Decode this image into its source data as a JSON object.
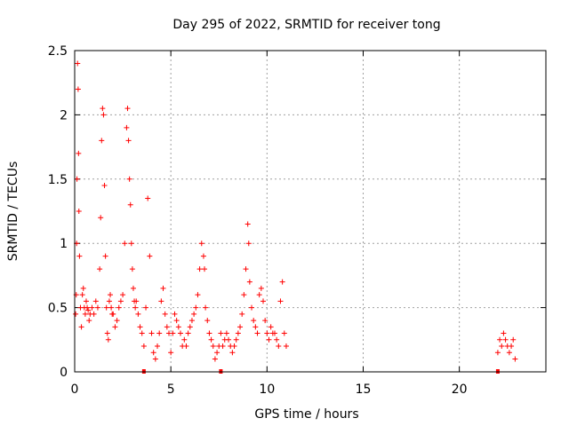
{
  "chart_data": {
    "type": "scatter",
    "title": "Day 295 of 2022, SRMTID for receiver tong",
    "xlabel": "GPS time / hours",
    "ylabel": "SRMTID / TECUs",
    "xlim": [
      0,
      24.5
    ],
    "ylim": [
      0,
      2.5
    ],
    "xticks": [
      "0",
      "5",
      "10",
      "15",
      "20"
    ],
    "yticks": [
      "0",
      "0.5",
      "1",
      "1.5",
      "2",
      "2.5"
    ],
    "grid": true,
    "marker": "+",
    "marker_color": "#ff0000",
    "series": [
      {
        "name": "SRMTID",
        "x": [
          0.05,
          0.08,
          0.1,
          0.12,
          0.15,
          0.18,
          0.2,
          0.22,
          0.25,
          0.3,
          0.35,
          0.4,
          0.45,
          0.5,
          0.55,
          0.6,
          0.65,
          0.7,
          0.75,
          0.8,
          0.9,
          1.0,
          1.1,
          1.2,
          1.3,
          1.35,
          1.4,
          1.45,
          1.5,
          1.55,
          1.6,
          1.65,
          1.7,
          1.75,
          1.8,
          1.85,
          1.9,
          1.95,
          2.0,
          2.1,
          2.2,
          2.3,
          2.4,
          2.5,
          2.6,
          2.7,
          2.75,
          2.8,
          2.85,
          2.9,
          2.95,
          3.0,
          3.05,
          3.1,
          3.15,
          3.2,
          3.3,
          3.4,
          3.5,
          3.6,
          3.7,
          3.8,
          3.9,
          4.0,
          4.1,
          4.2,
          4.3,
          4.4,
          4.5,
          4.6,
          4.7,
          4.8,
          4.9,
          5.0,
          5.1,
          5.2,
          5.3,
          5.4,
          5.5,
          5.6,
          5.7,
          5.8,
          5.9,
          6.0,
          6.1,
          6.2,
          6.3,
          6.4,
          6.5,
          6.6,
          6.7,
          6.75,
          6.8,
          6.9,
          7.0,
          7.1,
          7.2,
          7.3,
          7.4,
          7.5,
          7.6,
          7.7,
          7.8,
          7.9,
          8.0,
          8.1,
          8.2,
          8.3,
          8.4,
          8.5,
          8.6,
          8.7,
          8.8,
          8.9,
          9.0,
          9.05,
          9.1,
          9.2,
          9.3,
          9.4,
          9.5,
          9.6,
          9.7,
          9.8,
          9.9,
          10.0,
          10.1,
          10.2,
          10.3,
          10.4,
          10.5,
          10.6,
          10.7,
          10.8,
          10.9,
          11.0,
          22.0,
          22.1,
          22.2,
          22.3,
          22.4,
          22.5,
          22.6,
          22.7,
          22.8,
          22.9
        ],
        "y": [
          0.45,
          0.6,
          1.0,
          1.5,
          2.4,
          2.2,
          1.7,
          1.25,
          0.9,
          0.5,
          0.35,
          0.6,
          0.65,
          0.5,
          0.45,
          0.55,
          0.5,
          0.48,
          0.4,
          0.45,
          0.5,
          0.45,
          0.55,
          0.5,
          0.8,
          1.2,
          1.8,
          2.05,
          2.0,
          1.45,
          0.9,
          0.5,
          0.3,
          0.25,
          0.55,
          0.6,
          0.5,
          0.45,
          0.45,
          0.35,
          0.4,
          0.5,
          0.55,
          0.6,
          1.0,
          1.9,
          2.05,
          1.8,
          1.5,
          1.3,
          1.0,
          0.8,
          0.65,
          0.55,
          0.5,
          0.55,
          0.45,
          0.35,
          0.3,
          0.2,
          0.5,
          1.35,
          0.9,
          0.3,
          0.15,
          0.1,
          0.2,
          0.3,
          0.55,
          0.65,
          0.45,
          0.35,
          0.3,
          0.15,
          0.3,
          0.45,
          0.4,
          0.35,
          0.3,
          0.2,
          0.25,
          0.2,
          0.3,
          0.35,
          0.4,
          0.45,
          0.5,
          0.6,
          0.8,
          1.0,
          0.9,
          0.8,
          0.5,
          0.4,
          0.3,
          0.25,
          0.2,
          0.1,
          0.15,
          0.2,
          0.3,
          0.2,
          0.25,
          0.3,
          0.25,
          0.2,
          0.15,
          0.2,
          0.25,
          0.3,
          0.35,
          0.45,
          0.6,
          0.8,
          1.15,
          1.0,
          0.7,
          0.5,
          0.4,
          0.35,
          0.3,
          0.6,
          0.65,
          0.55,
          0.4,
          0.3,
          0.25,
          0.35,
          0.3,
          0.3,
          0.25,
          0.2,
          0.55,
          0.7,
          0.3,
          0.2,
          0.15,
          0.25,
          0.2,
          0.3,
          0.25,
          0.2,
          0.15,
          0.2,
          0.25,
          0.1
        ],
        "edge_markers_x": [
          3.6,
          7.6,
          22.0
        ]
      }
    ]
  }
}
